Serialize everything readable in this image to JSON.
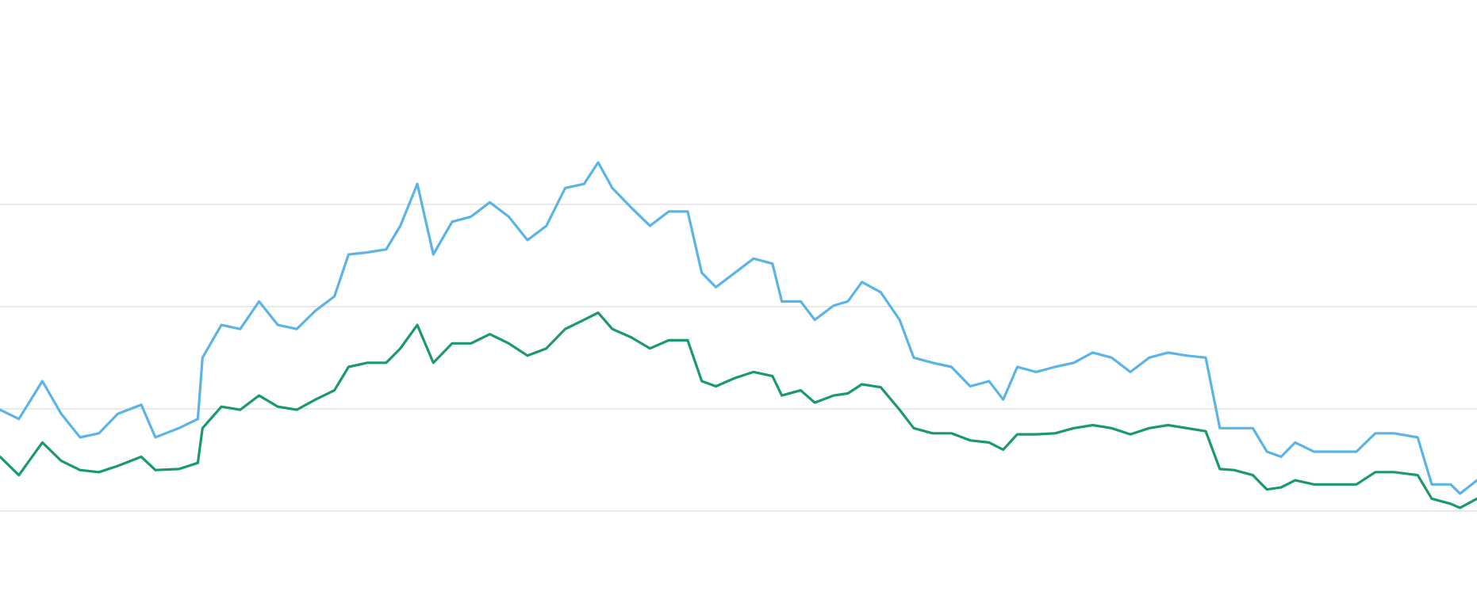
{
  "chart_data": {
    "type": "line",
    "x": [
      0,
      20,
      45,
      65,
      85,
      105,
      125,
      150,
      165,
      190,
      210,
      215,
      235,
      255,
      275,
      295,
      315,
      335,
      355,
      370,
      390,
      410,
      425,
      443,
      460,
      480,
      500,
      520,
      540,
      560,
      580,
      600,
      620,
      635,
      650,
      670,
      690,
      710,
      730,
      745,
      760,
      780,
      800,
      820,
      830,
      850,
      865,
      885,
      900,
      915,
      935,
      955,
      970,
      990,
      1010,
      1030,
      1050,
      1065,
      1080,
      1100,
      1120,
      1140,
      1160,
      1180,
      1200,
      1220,
      1240,
      1260,
      1280,
      1295,
      1310,
      1330,
      1345,
      1360,
      1375,
      1395,
      1420,
      1440,
      1460,
      1480,
      1505,
      1520,
      1540,
      1550,
      1568
    ],
    "series": [
      {
        "color": "#5bb4e6",
        "values": [
          199,
          190,
          227,
          195,
          172,
          176,
          195,
          204,
          172,
          181,
          190,
          250,
          282,
          278,
          305,
          282,
          278,
          296,
          310,
          351,
          353,
          356,
          379,
          420,
          351,
          383,
          388,
          402,
          388,
          365,
          379,
          416,
          420,
          441,
          416,
          397,
          379,
          393,
          393,
          333,
          319,
          333,
          347,
          342,
          305,
          305,
          287,
          301,
          305,
          324,
          314,
          287,
          250,
          245,
          241,
          222,
          227,
          209,
          241,
          236,
          241,
          245,
          255,
          250,
          236,
          250,
          255,
          252,
          250,
          181,
          181,
          181,
          158,
          153,
          167,
          158,
          158,
          158,
          176,
          176,
          172,
          126,
          126,
          117,
          130
        ]
      },
      {
        "color": "#1a9a6c",
        "values": [
          153,
          135,
          167,
          149,
          140,
          138,
          144,
          153,
          140,
          141,
          147,
          181,
          202,
          199,
          213,
          202,
          199,
          209,
          218,
          241,
          245,
          245,
          259,
          282,
          245,
          264,
          264,
          273,
          264,
          252,
          259,
          278,
          287,
          294,
          278,
          270,
          259,
          267,
          267,
          227,
          222,
          230,
          236,
          232,
          213,
          218,
          206,
          213,
          215,
          224,
          221,
          199,
          181,
          176,
          176,
          169,
          167,
          160,
          175,
          175,
          176,
          181,
          184,
          181,
          175,
          181,
          184,
          181,
          178,
          141,
          140,
          135,
          121,
          123,
          130,
          126,
          126,
          126,
          138,
          138,
          135,
          112,
          107,
          103,
          112
        ]
      }
    ],
    "xlim": [
      0,
      1568
    ],
    "ylim": [
      6,
      600
    ],
    "yticks": [
      100,
      200,
      300,
      400
    ],
    "grid": true
  }
}
